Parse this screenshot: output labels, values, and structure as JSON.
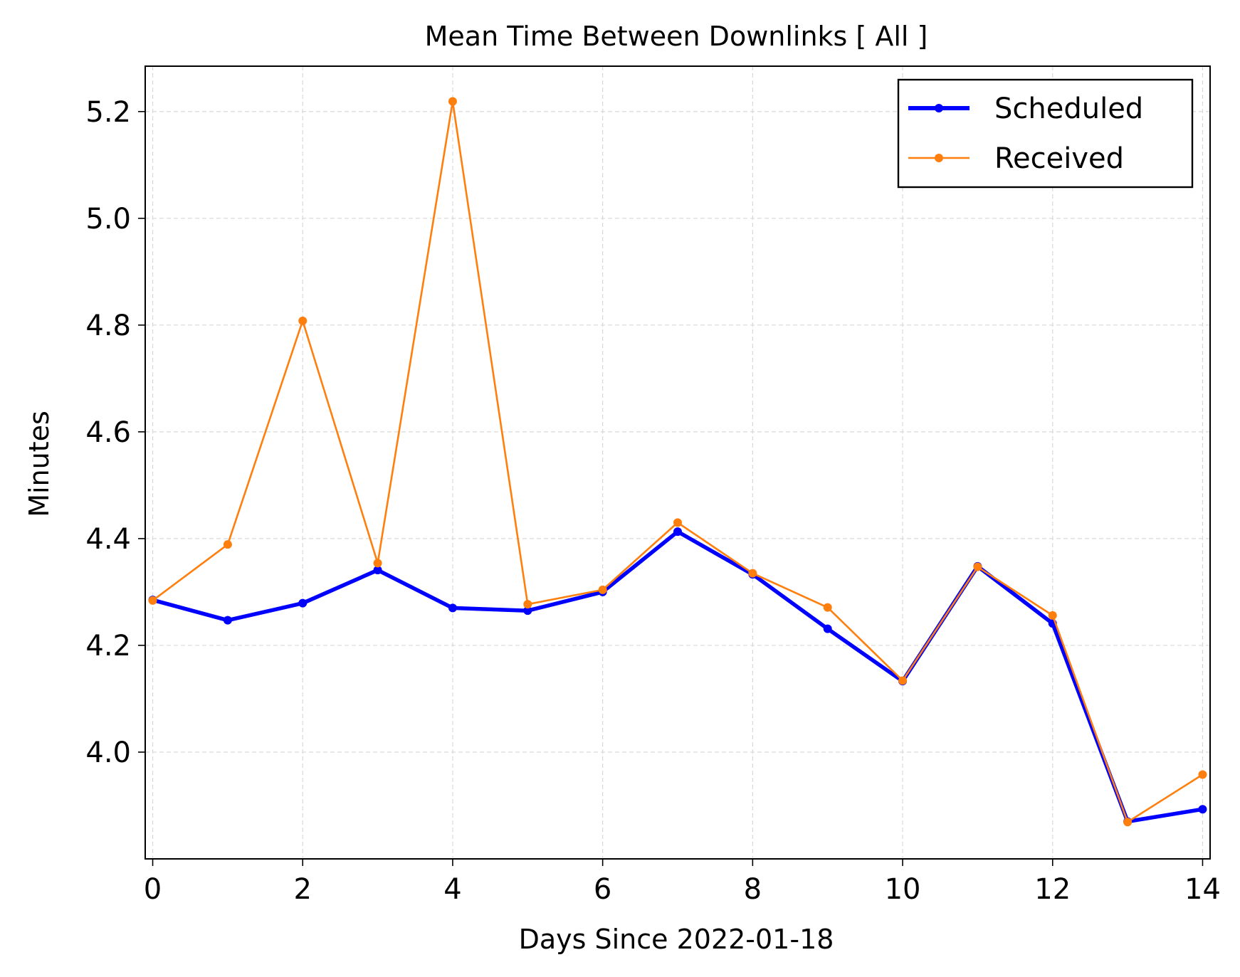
{
  "chart_data": {
    "type": "line",
    "title": "Mean Time Between Downlinks [ All ]",
    "xlabel": "Days Since 2022-01-18",
    "ylabel": "Minutes",
    "xlim": [
      -0.1,
      14.1
    ],
    "ylim": [
      3.8,
      5.285
    ],
    "xticks": [
      0,
      2,
      4,
      6,
      8,
      10,
      12,
      14
    ],
    "xtick_labels": [
      "0",
      "2",
      "4",
      "6",
      "8",
      "10",
      "12",
      "14"
    ],
    "yticks": [
      4.0,
      4.2,
      4.4,
      4.6,
      4.8,
      5.0,
      5.2
    ],
    "ytick_labels": [
      "4.0",
      "4.2",
      "4.4",
      "4.6",
      "4.8",
      "5.0",
      "5.2"
    ],
    "grid": true,
    "legend_position": "top-right",
    "x": [
      0,
      1,
      2,
      3,
      4,
      5,
      6,
      7,
      8,
      9,
      10,
      11,
      12,
      13,
      14
    ],
    "series": [
      {
        "name": "Scheduled",
        "color": "#0000ff",
        "values": [
          4.285,
          4.247,
          4.279,
          4.341,
          4.27,
          4.265,
          4.3,
          4.413,
          4.333,
          4.231,
          4.133,
          4.348,
          4.241,
          3.87,
          3.893
        ]
      },
      {
        "name": "Received",
        "color": "#ff7f0e",
        "values": [
          4.284,
          4.389,
          4.808,
          4.354,
          5.219,
          4.277,
          4.304,
          4.43,
          4.335,
          4.271,
          4.134,
          4.347,
          4.256,
          3.869,
          3.958
        ]
      }
    ]
  }
}
